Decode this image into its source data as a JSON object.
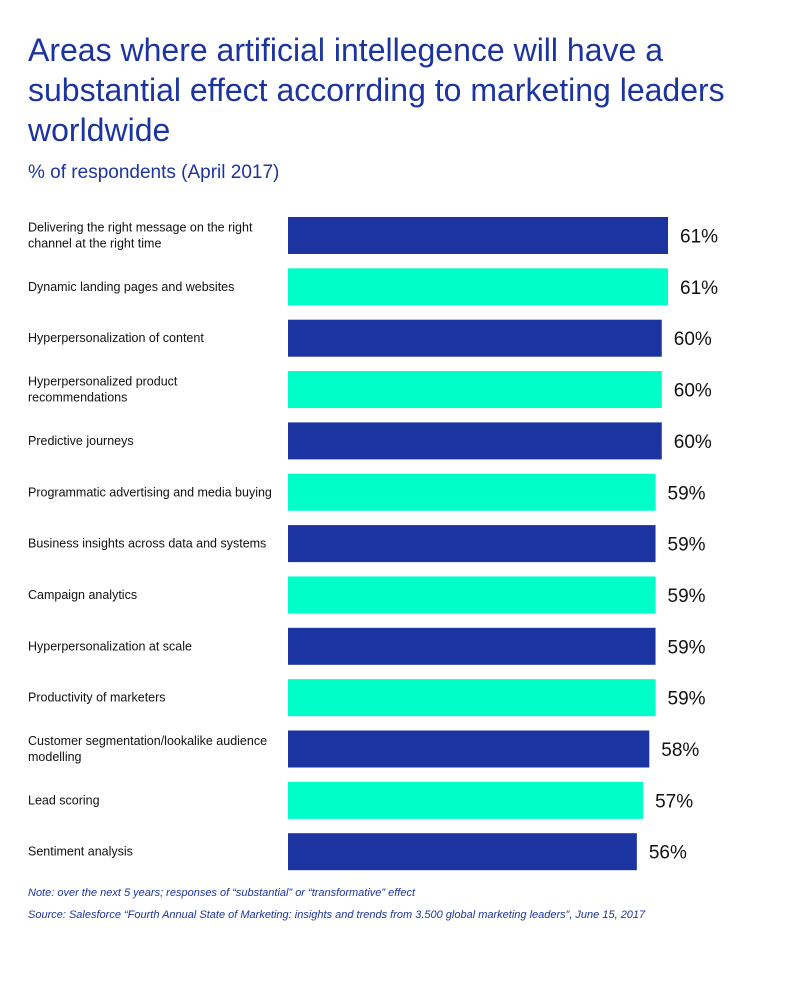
{
  "title": "Areas where artificial intellegence will have a substantial effect accorrding to marketing leaders worldwide",
  "subtitle": "% of respondents (April 2017)",
  "colors": {
    "title": "#1c34a0",
    "bar_dark": "#1c34a0",
    "bar_light": "#00ffc8",
    "label": "#111111"
  },
  "chart_data": {
    "type": "bar",
    "orientation": "horizontal",
    "categories": [
      "Delivering the right message on the right channel at the right time",
      "Dynamic landing pages and websites",
      "Hyperpersonalization of content",
      "Hyperpersonalized product recommendations",
      "Predictive journeys",
      "Programmatic advertising and media buying",
      "Business insights across data and systems",
      "Campaign analytics",
      "Hyperpersonalization at scale",
      "Productivity of marketers",
      "Customer segmentation/lookalike audience modelling",
      "Lead scoring",
      "Sentiment analysis"
    ],
    "values": [
      61,
      61,
      60,
      60,
      60,
      59,
      59,
      59,
      59,
      59,
      58,
      57,
      56
    ],
    "value_labels": [
      "61%",
      "61%",
      "60%",
      "60%",
      "60%",
      "59%",
      "59%",
      "59%",
      "59%",
      "59%",
      "58%",
      "57%",
      "56%"
    ],
    "bar_color_pattern": [
      "dark",
      "light",
      "dark",
      "light",
      "dark",
      "light",
      "dark",
      "light",
      "dark",
      "light",
      "dark",
      "light",
      "dark"
    ],
    "grid": false
  },
  "note": "Note: over the next 5 years; responses of “substantial” or “transformative” effect",
  "source": "Source: Salesforce “Fourth Annual State of Marketing: insights and trends from 3.500 global marketing leaders”, June 15, 2017"
}
